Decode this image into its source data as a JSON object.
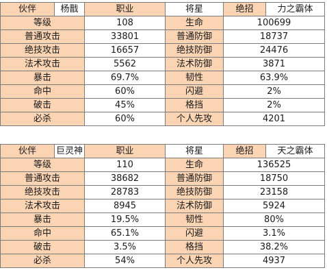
{
  "header_labels": {
    "partner": "伙伴",
    "job": "职业",
    "job_value": "将星",
    "ultimate": "绝招"
  },
  "partners": [
    {
      "name": "杨戬",
      "ultimate_name": "力之霸体",
      "rows": [
        {
          "label1": "等级",
          "value1": "108",
          "label2": "生命",
          "value2": "100699"
        },
        {
          "label1": "普通攻击",
          "value1": "33801",
          "label2": "普通防御",
          "value2": "18737"
        },
        {
          "label1": "绝技攻击",
          "value1": "16657",
          "label2": "绝技防御",
          "value2": "24476"
        },
        {
          "label1": "法术攻击",
          "value1": "5562",
          "label2": "法术防御",
          "value2": "3871"
        },
        {
          "label1": "暴击",
          "value1": "69.7%",
          "label2": "韧性",
          "value2": "63.9%"
        },
        {
          "label1": "命中",
          "value1": "60%",
          "label2": "闪避",
          "value2": "2%"
        },
        {
          "label1": "破击",
          "value1": "45%",
          "label2": "格挡",
          "value2": "2%"
        },
        {
          "label1": "必杀",
          "value1": "60%",
          "label2": "个人先攻",
          "value2": "4201"
        }
      ]
    },
    {
      "name": "巨灵神",
      "ultimate_name": "天之霸体",
      "rows": [
        {
          "label1": "等级",
          "value1": "110",
          "label2": "生命",
          "value2": "136525"
        },
        {
          "label1": "普通攻击",
          "value1": "38682",
          "label2": "普通防御",
          "value2": "18750"
        },
        {
          "label1": "绝技攻击",
          "value1": "28783",
          "label2": "绝技防御",
          "value2": "23158"
        },
        {
          "label1": "法术攻击",
          "value1": "8945",
          "label2": "法术防御",
          "value2": "5924"
        },
        {
          "label1": "暴击",
          "value1": "19.5%",
          "label2": "韧性",
          "value2": "80%"
        },
        {
          "label1": "命中",
          "value1": "65.1%",
          "label2": "闪避",
          "value2": "3.1%"
        },
        {
          "label1": "破击",
          "value1": "3.5%",
          "label2": "格挡",
          "value2": "38.2%"
        },
        {
          "label1": "必杀",
          "value1": "54%",
          "label2": "个人先攻",
          "value2": "4937"
        }
      ]
    }
  ],
  "colors": {
    "label_bg": "#fbd4b4",
    "value_bg": "#ffffff",
    "border": "#7a7a7a"
  }
}
